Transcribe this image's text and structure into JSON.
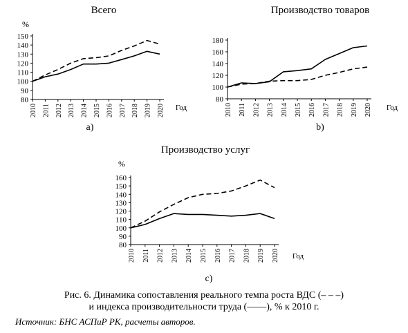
{
  "chart_data": [
    {
      "type": "line",
      "title": "Всего",
      "panel_label": "a)",
      "y_unit": "%",
      "xlabel": "Год",
      "x": [
        "2010",
        "2011",
        "2012",
        "2013",
        "2014",
        "2015",
        "2016",
        "2017",
        "2018",
        "2019",
        "2020"
      ],
      "ylim": [
        80,
        150
      ],
      "yticks": [
        80,
        90,
        100,
        110,
        120,
        130,
        140,
        150
      ],
      "series": [
        {
          "style": "dashed",
          "values": [
            100,
            107,
            113,
            120,
            125,
            126,
            128,
            134,
            139,
            145,
            141
          ]
        },
        {
          "style": "solid",
          "values": [
            100,
            105,
            108,
            113,
            119,
            119,
            120,
            124,
            128,
            133,
            130
          ]
        }
      ]
    },
    {
      "type": "line",
      "title": "Производство товаров",
      "panel_label": "b)",
      "y_unit": "",
      "xlabel": "Год",
      "x": [
        "2010",
        "2011",
        "2012",
        "2013",
        "2014",
        "2015",
        "2016",
        "2017",
        "2018",
        "2019",
        "2020"
      ],
      "ylim": [
        80,
        180
      ],
      "yticks": [
        80,
        100,
        120,
        140,
        160,
        180
      ],
      "series": [
        {
          "style": "dashed",
          "values": [
            100,
            105,
            106,
            110,
            111,
            111,
            113,
            120,
            125,
            131,
            134
          ]
        },
        {
          "style": "solid",
          "values": [
            100,
            107,
            106,
            109,
            126,
            128,
            131,
            147,
            157,
            167,
            170
          ]
        }
      ]
    },
    {
      "type": "line",
      "title": "Производство услуг",
      "panel_label": "c)",
      "y_unit": "%",
      "xlabel": "Год",
      "x": [
        "2010",
        "2011",
        "2012",
        "2013",
        "2014",
        "2015",
        "2016",
        "2017",
        "2018",
        "2019",
        "2020"
      ],
      "ylim": [
        80,
        160
      ],
      "yticks": [
        80,
        90,
        100,
        110,
        120,
        130,
        140,
        150,
        160
      ],
      "series": [
        {
          "style": "dashed",
          "values": [
            100,
            108,
            119,
            128,
            136,
            140,
            141,
            144,
            150,
            157,
            148
          ]
        },
        {
          "style": "solid",
          "values": [
            100,
            104,
            111,
            117,
            116,
            116,
            115,
            114,
            115,
            117,
            111
          ]
        }
      ]
    }
  ],
  "caption": {
    "line1": "Рис. 6. Динамика сопоставления реального темпа роста ВДС (– – –)",
    "line2": "и индекса производительности труда (——), % к 2010 г."
  },
  "source": "Источник: БНС АСПиР РК, расчеты авторов."
}
